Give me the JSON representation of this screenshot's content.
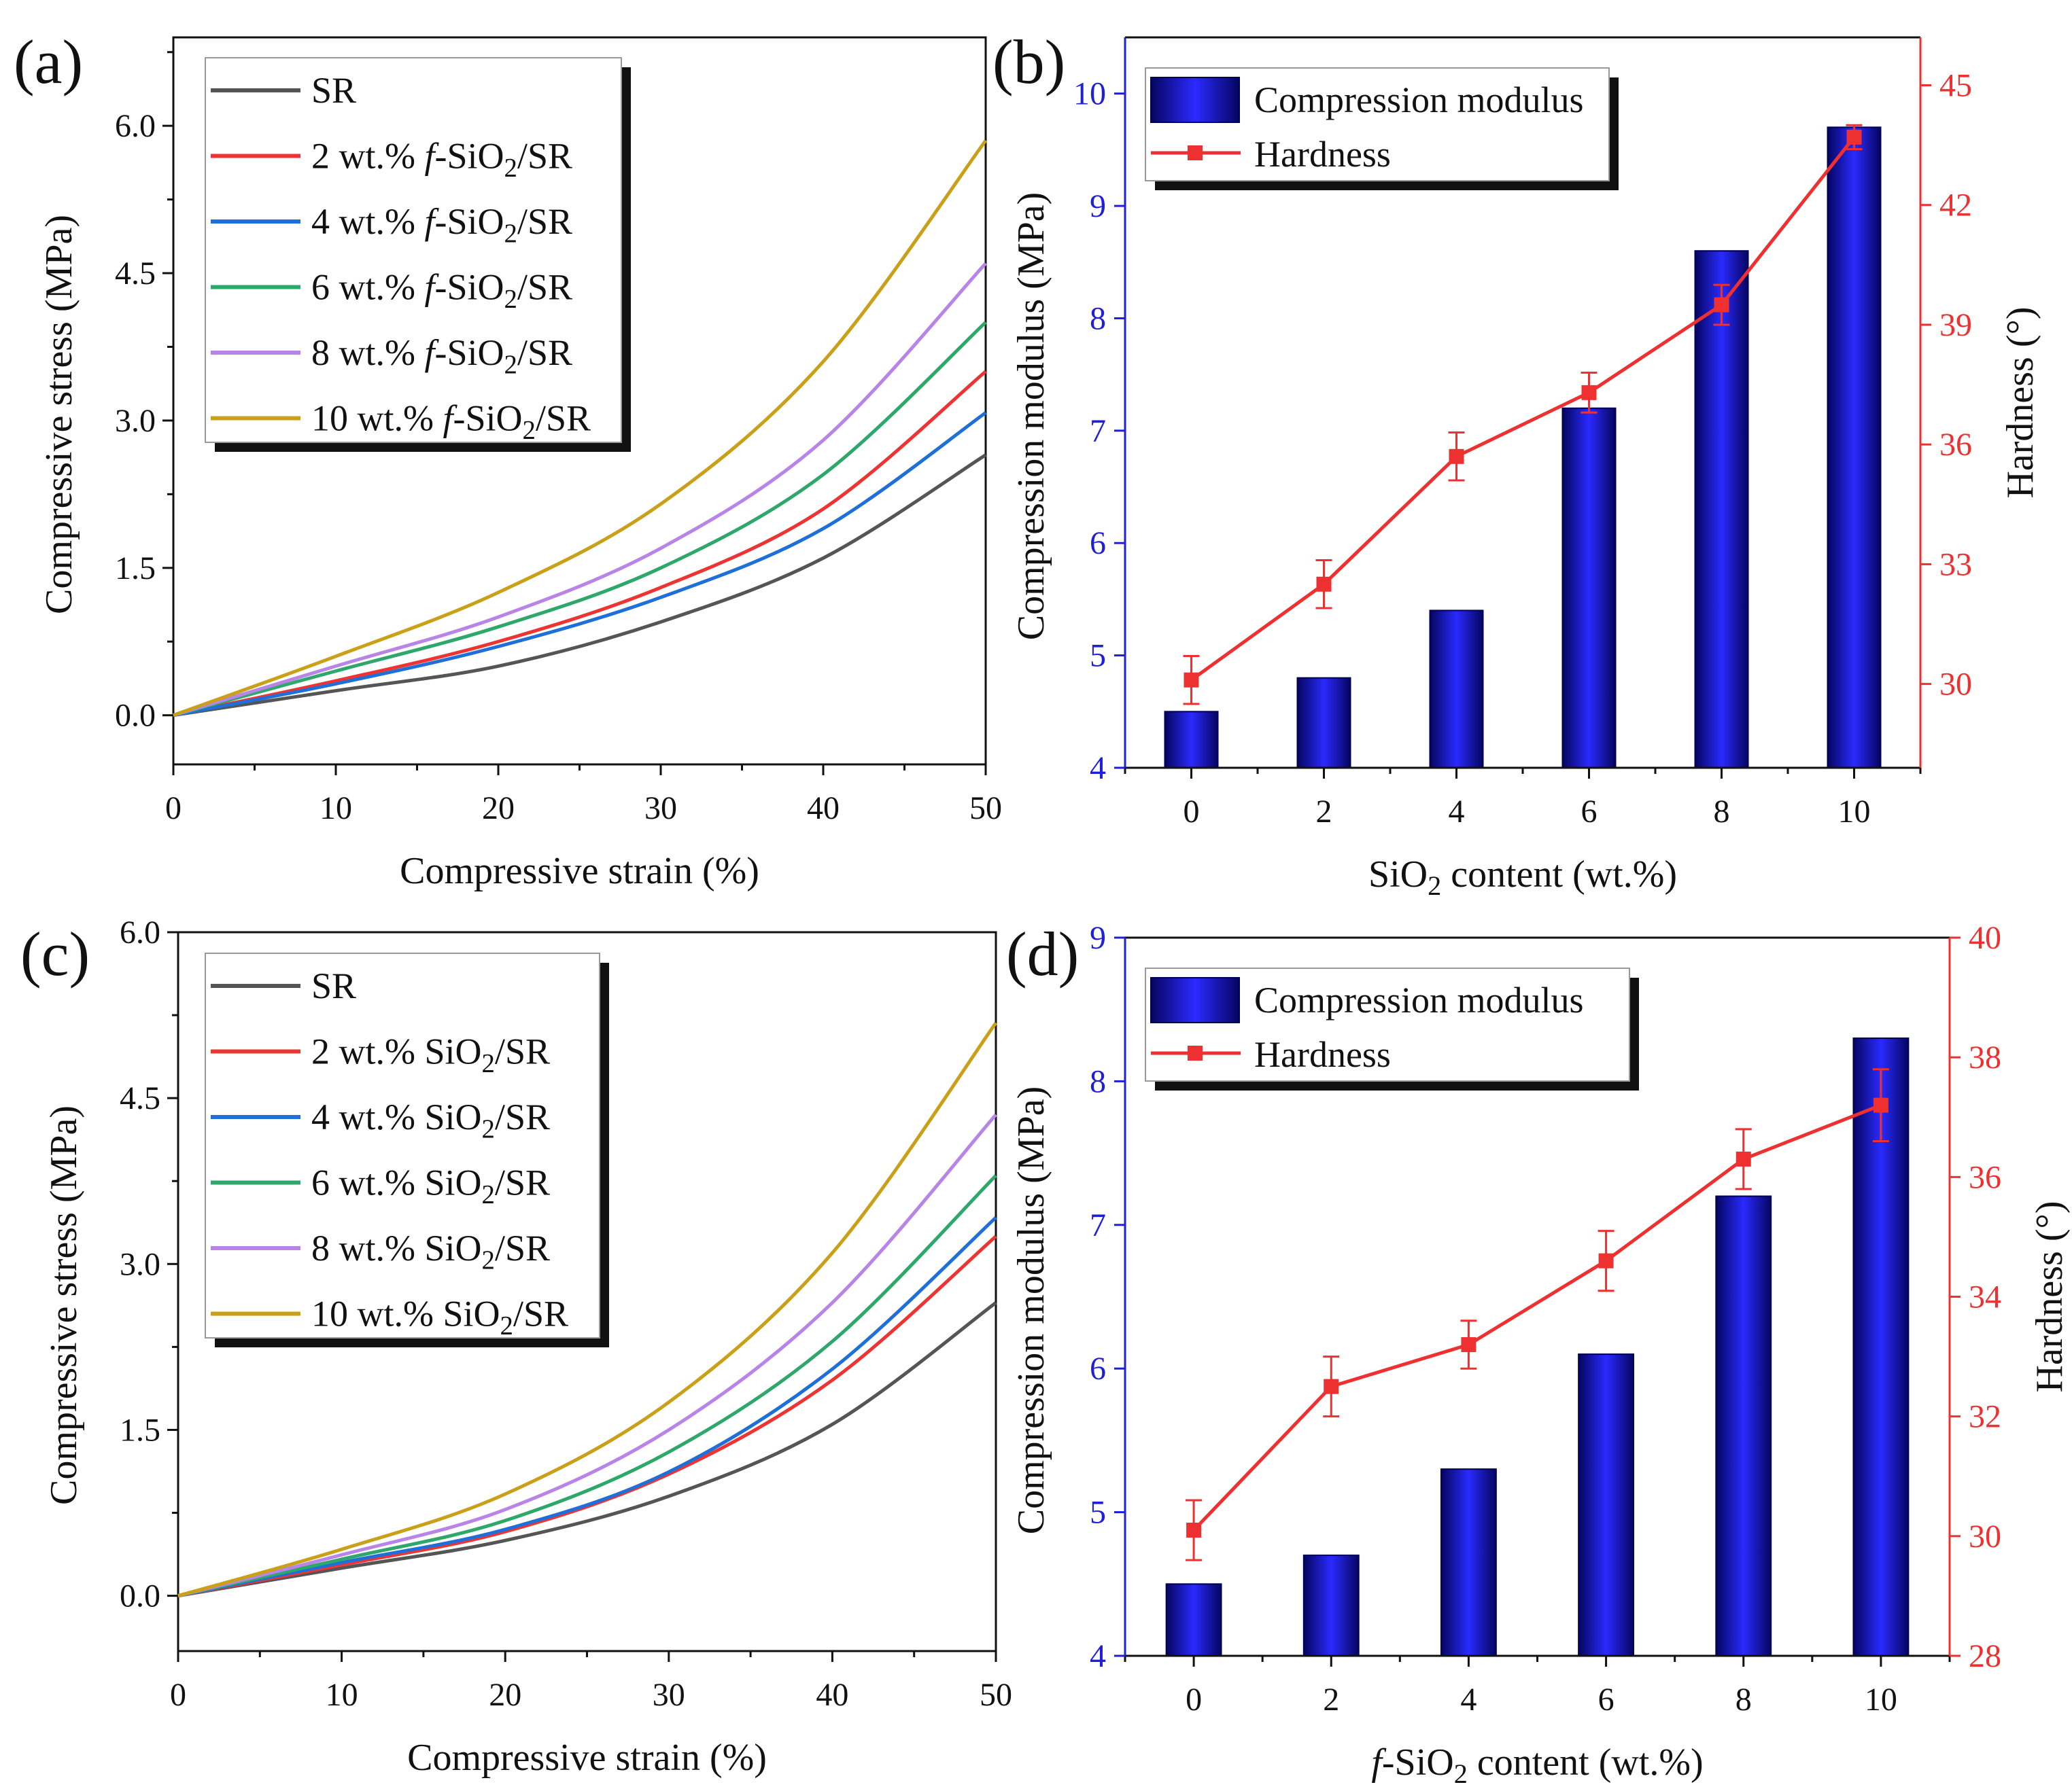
{
  "chart_data": [
    {
      "panel": "(a)",
      "type": "line",
      "xlabel": "Compressive strain (%)",
      "ylabel": "Compressive stress (MPa)",
      "xlim": [
        0,
        50
      ],
      "ylim": [
        -0.5,
        6.9
      ],
      "xticks": [
        "0",
        "10",
        "20",
        "30",
        "40",
        "50"
      ],
      "yticks": [
        "0.0",
        "1.5",
        "3.0",
        "4.5",
        "6.0"
      ],
      "legend_position": "top-left",
      "series": [
        {
          "name": "SR",
          "legend": [
            "SR"
          ],
          "color": "#555555",
          "points": [
            [
              0,
              0
            ],
            [
              10,
              0.25
            ],
            [
              20,
              0.5
            ],
            [
              30,
              0.95
            ],
            [
              40,
              1.6
            ],
            [
              50,
              2.65
            ]
          ]
        },
        {
          "name": "2 wt.% f-SiO2/SR",
          "legend": [
            "2 wt.% ",
            "f",
            "-SiO",
            "2",
            "/SR"
          ],
          "color": "#ee3333",
          "points": [
            [
              0,
              0
            ],
            [
              10,
              0.35
            ],
            [
              20,
              0.75
            ],
            [
              30,
              1.3
            ],
            [
              40,
              2.1
            ],
            [
              50,
              3.5
            ]
          ]
        },
        {
          "name": "4 wt.% f-SiO2/SR",
          "legend": [
            "4 wt.% ",
            "f",
            "-SiO",
            "2",
            "/SR"
          ],
          "color": "#1f6fd8",
          "points": [
            [
              0,
              0
            ],
            [
              10,
              0.32
            ],
            [
              20,
              0.7
            ],
            [
              30,
              1.2
            ],
            [
              40,
              1.9
            ],
            [
              50,
              3.08
            ]
          ]
        },
        {
          "name": "6 wt.% f-SiO2/SR",
          "legend": [
            "6 wt.% ",
            "f",
            "-SiO",
            "2",
            "/SR"
          ],
          "color": "#2ea86a",
          "points": [
            [
              0,
              0
            ],
            [
              10,
              0.45
            ],
            [
              20,
              0.9
            ],
            [
              30,
              1.5
            ],
            [
              40,
              2.45
            ],
            [
              50,
              4.0
            ]
          ]
        },
        {
          "name": "8 wt.% f-SiO2/SR",
          "legend": [
            "8 wt.% ",
            "f",
            "-SiO",
            "2",
            "/SR"
          ],
          "color": "#b884e8",
          "points": [
            [
              0,
              0
            ],
            [
              10,
              0.5
            ],
            [
              20,
              1.0
            ],
            [
              30,
              1.7
            ],
            [
              40,
              2.8
            ],
            [
              50,
              4.6
            ]
          ]
        },
        {
          "name": "10 wt.% f-SiO2/SR",
          "legend": [
            "10 wt.% ",
            "f",
            "-SiO",
            "2",
            "/SR"
          ],
          "color": "#c9a018",
          "points": [
            [
              0,
              0
            ],
            [
              10,
              0.6
            ],
            [
              20,
              1.25
            ],
            [
              30,
              2.15
            ],
            [
              40,
              3.6
            ],
            [
              50,
              5.85
            ]
          ]
        }
      ]
    },
    {
      "panel": "(b)",
      "type": "bar+line",
      "xlabel": [
        "SiO",
        "2",
        " content (wt.%)"
      ],
      "ylabel_left": "Compression modulus (MPa)",
      "ylabel_right": "Hardness (°)",
      "categories": [
        "0",
        "2",
        "4",
        "6",
        "8",
        "10"
      ],
      "x": [
        0,
        2,
        4,
        6,
        8,
        10
      ],
      "xlim": [
        -1,
        11
      ],
      "ylim_left": [
        4,
        10.5
      ],
      "ylim_right": [
        27.9,
        46.2
      ],
      "yticks_left": [
        "4",
        "5",
        "6",
        "7",
        "8",
        "9",
        "10"
      ],
      "yticks_right": [
        "30",
        "33",
        "36",
        "39",
        "42",
        "45"
      ],
      "bars": {
        "name": "Compression modulus",
        "values": [
          4.5,
          4.8,
          5.4,
          7.2,
          8.6,
          9.7
        ]
      },
      "line": {
        "name": "Hardness",
        "values": [
          30.1,
          32.5,
          35.7,
          37.3,
          39.5,
          43.7
        ],
        "errors": [
          0.6,
          0.6,
          0.6,
          0.5,
          0.5,
          0.3
        ]
      },
      "legend_position": "top-left"
    },
    {
      "panel": "(c)",
      "type": "line",
      "xlabel": "Compressive strain (%)",
      "ylabel": "Compressive stress (MPa)",
      "xlim": [
        0,
        50
      ],
      "ylim": [
        -0.5,
        6.0
      ],
      "xticks": [
        "0",
        "10",
        "20",
        "30",
        "40",
        "50"
      ],
      "yticks": [
        "0.0",
        "1.5",
        "3.0",
        "4.5",
        "6.0"
      ],
      "legend_position": "top-left",
      "series": [
        {
          "name": "SR",
          "legend": [
            "SR"
          ],
          "color": "#555555",
          "points": [
            [
              0,
              0
            ],
            [
              10,
              0.25
            ],
            [
              20,
              0.5
            ],
            [
              30,
              0.9
            ],
            [
              40,
              1.55
            ],
            [
              50,
              2.65
            ]
          ]
        },
        {
          "name": "2 wt.% SiO2/SR",
          "legend": [
            "2 wt.% SiO",
            "2",
            "/SR"
          ],
          "color": "#ee3333",
          "points": [
            [
              0,
              0
            ],
            [
              10,
              0.28
            ],
            [
              20,
              0.58
            ],
            [
              30,
              1.1
            ],
            [
              40,
              1.95
            ],
            [
              50,
              3.25
            ]
          ]
        },
        {
          "name": "4 wt.% SiO2/SR",
          "legend": [
            "4 wt.% SiO",
            "2",
            "/SR"
          ],
          "color": "#1f6fd8",
          "points": [
            [
              0,
              0
            ],
            [
              10,
              0.3
            ],
            [
              20,
              0.6
            ],
            [
              30,
              1.12
            ],
            [
              40,
              2.05
            ],
            [
              50,
              3.42
            ]
          ]
        },
        {
          "name": "6 wt.% SiO2/SR",
          "legend": [
            "6 wt.% SiO",
            "2",
            "/SR"
          ],
          "color": "#2ea86a",
          "points": [
            [
              0,
              0
            ],
            [
              10,
              0.33
            ],
            [
              20,
              0.68
            ],
            [
              30,
              1.3
            ],
            [
              40,
              2.3
            ],
            [
              50,
              3.8
            ]
          ]
        },
        {
          "name": "8 wt.% SiO2/SR",
          "legend": [
            "8 wt.% SiO",
            "2",
            "/SR"
          ],
          "color": "#b884e8",
          "points": [
            [
              0,
              0
            ],
            [
              10,
              0.37
            ],
            [
              20,
              0.78
            ],
            [
              30,
              1.5
            ],
            [
              40,
              2.65
            ],
            [
              50,
              4.35
            ]
          ]
        },
        {
          "name": "10 wt.% SiO2/SR",
          "legend": [
            "10 wt.% SiO",
            "2",
            "/SR"
          ],
          "color": "#c9a018",
          "points": [
            [
              0,
              0
            ],
            [
              10,
              0.42
            ],
            [
              20,
              0.92
            ],
            [
              30,
              1.75
            ],
            [
              40,
              3.1
            ],
            [
              50,
              5.18
            ]
          ]
        }
      ]
    },
    {
      "panel": "(d)",
      "type": "bar+line",
      "xlabel": [
        "f",
        "-SiO",
        "2",
        " content (wt.%)"
      ],
      "ylabel_left": "Compression modulus (MPa)",
      "ylabel_right": "Hardness (°)",
      "categories": [
        "0",
        "2",
        "4",
        "6",
        "8",
        "10"
      ],
      "x": [
        0,
        2,
        4,
        6,
        8,
        10
      ],
      "xlim": [
        -1,
        11
      ],
      "ylim_left": [
        4,
        9
      ],
      "ylim_right": [
        28,
        40
      ],
      "yticks_left": [
        "4",
        "5",
        "6",
        "7",
        "8",
        "9"
      ],
      "yticks_right": [
        "28",
        "30",
        "32",
        "34",
        "36",
        "38",
        "40"
      ],
      "bars": {
        "name": "Compression modulus",
        "values": [
          4.5,
          4.7,
          5.3,
          6.1,
          7.2,
          8.3
        ]
      },
      "line": {
        "name": "Hardness",
        "values": [
          30.1,
          32.5,
          33.2,
          34.6,
          36.3,
          37.2
        ],
        "errors": [
          0.5,
          0.5,
          0.4,
          0.5,
          0.5,
          0.6
        ]
      },
      "legend_position": "top-left"
    }
  ]
}
